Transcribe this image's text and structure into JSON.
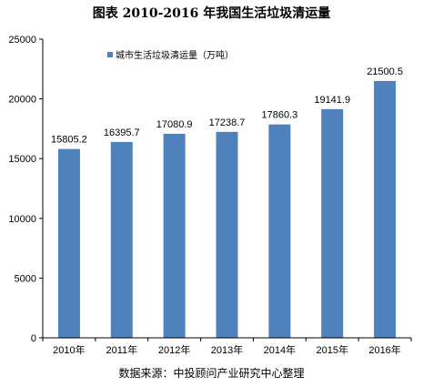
{
  "chart_data": {
    "type": "bar",
    "title": "图表   2010-2016 年我国生活垃圾清运量",
    "categories": [
      "2010年",
      "2011年",
      "2012年",
      "2013年",
      "2014年",
      "2015年",
      "2016年"
    ],
    "series": [
      {
        "name": "城市生活垃圾清运量（万吨）",
        "values": [
          15805.2,
          16395.7,
          17080.9,
          17238.7,
          17860.3,
          19141.9,
          21500.5
        ]
      }
    ],
    "data_labels": [
      "15805.2",
      "16395.7",
      "17080.9",
      "17238.7",
      "17860.3",
      "19141.9",
      "21500.5"
    ],
    "yticks": [
      "0",
      "5000",
      "10000",
      "15000",
      "20000",
      "25000"
    ],
    "ylim": [
      0,
      25000
    ],
    "xlabel": "",
    "ylabel": "",
    "grid": false,
    "legend": "top-left",
    "bar_color": "#4f81bd"
  },
  "source": "数据来源：中投顾问产业研究中心整理"
}
